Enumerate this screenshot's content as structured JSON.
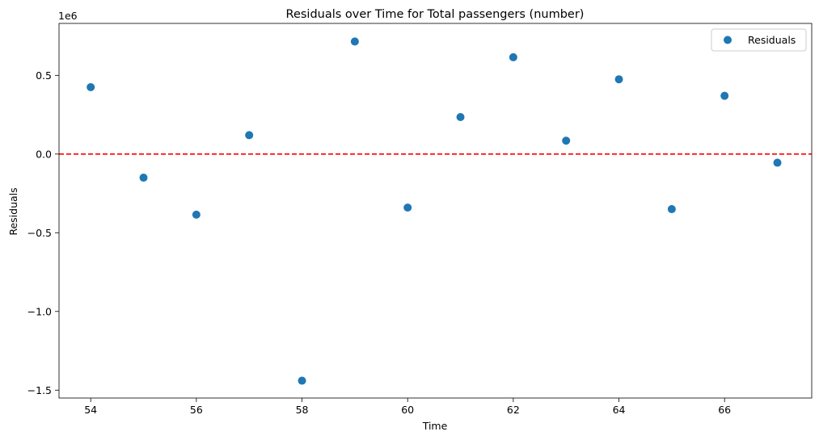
{
  "chart_data": {
    "type": "scatter",
    "title": "Residuals over Time for Total passengers (number)",
    "xlabel": "Time",
    "ylabel": "Residuals",
    "y_scale_label": "1e6",
    "xlim": [
      53.4,
      67.65
    ],
    "ylim": [
      -1.55,
      0.83
    ],
    "xticks": [
      54,
      56,
      58,
      60,
      62,
      64,
      66
    ],
    "xtick_labels": [
      "54",
      "56",
      "58",
      "60",
      "62",
      "64",
      "66"
    ],
    "yticks": [
      -1.5,
      -1.0,
      -0.5,
      0.0,
      0.5
    ],
    "ytick_labels": [
      "−1.5",
      "−1.0",
      "−0.5",
      "0.0",
      "0.5"
    ],
    "grid": false,
    "legend": {
      "position": "top-right",
      "entries": [
        "Residuals"
      ]
    },
    "series": [
      {
        "name": "Residuals",
        "color": "#1f77b4",
        "x": [
          54,
          55,
          56,
          57,
          58,
          59,
          60,
          61,
          62,
          63,
          64,
          65,
          66,
          67
        ],
        "y": [
          0.425,
          -0.15,
          -0.385,
          0.12,
          -1.44,
          0.715,
          -0.34,
          0.235,
          0.615,
          0.085,
          0.475,
          -0.35,
          0.37,
          -0.055
        ]
      }
    ],
    "reference_line": {
      "y": 0,
      "color": "#ff0000",
      "style": "dashed"
    }
  }
}
